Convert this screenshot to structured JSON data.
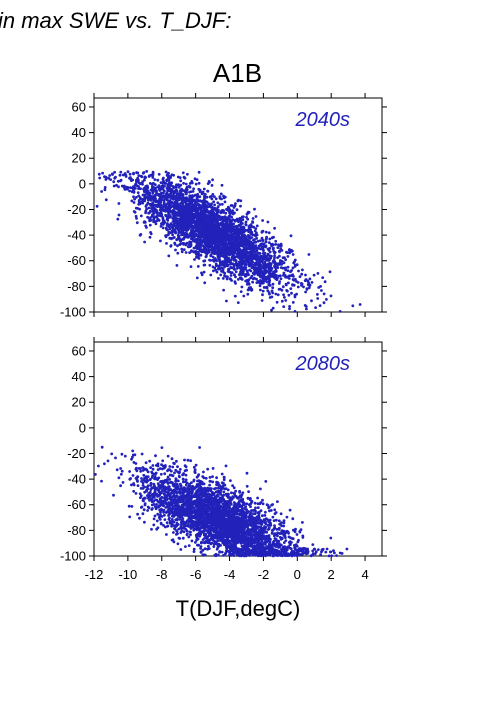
{
  "figure": {
    "heading": "in max SWE vs. T_DJF:",
    "scenario": "A1B",
    "point_color": "#2222bb"
  },
  "chart_data": [
    {
      "type": "scatter",
      "annotation": "2040s",
      "xlim": [
        -12,
        5
      ],
      "ylim": [
        -100,
        67
      ],
      "y_ticks": [
        -100,
        -80,
        -60,
        -40,
        -20,
        0,
        20,
        40,
        60
      ],
      "x_ticks": [
        -12,
        -10,
        -8,
        -6,
        -4,
        -2,
        0,
        2,
        4
      ],
      "xlabel": "",
      "ylabel": "",
      "grid": false,
      "point_cloud": {
        "count": 3400,
        "x_center": -5.0,
        "x_spread": 2.3,
        "y_at_center": -38,
        "slope": -7.5,
        "y_noise": 13,
        "x_min": -12,
        "x_max": 4.5,
        "y_min": -100,
        "y_max": 10
      }
    },
    {
      "type": "scatter",
      "annotation": "2080s",
      "xlim": [
        -12,
        5
      ],
      "ylim": [
        -100,
        67
      ],
      "y_ticks": [
        -100,
        -80,
        -60,
        -40,
        -20,
        0,
        20,
        40,
        60
      ],
      "x_ticks": [
        -12,
        -10,
        -8,
        -6,
        -4,
        -2,
        0,
        2,
        4
      ],
      "xlabel": "T(DJF,degC)",
      "ylabel": "",
      "grid": false,
      "point_cloud": {
        "count": 3400,
        "x_center": -4.6,
        "x_spread": 2.3,
        "y_at_center": -72,
        "slope": -6.0,
        "y_noise": 13,
        "x_min": -12,
        "x_max": 4.0,
        "y_min": -100,
        "y_max": 12
      }
    }
  ]
}
